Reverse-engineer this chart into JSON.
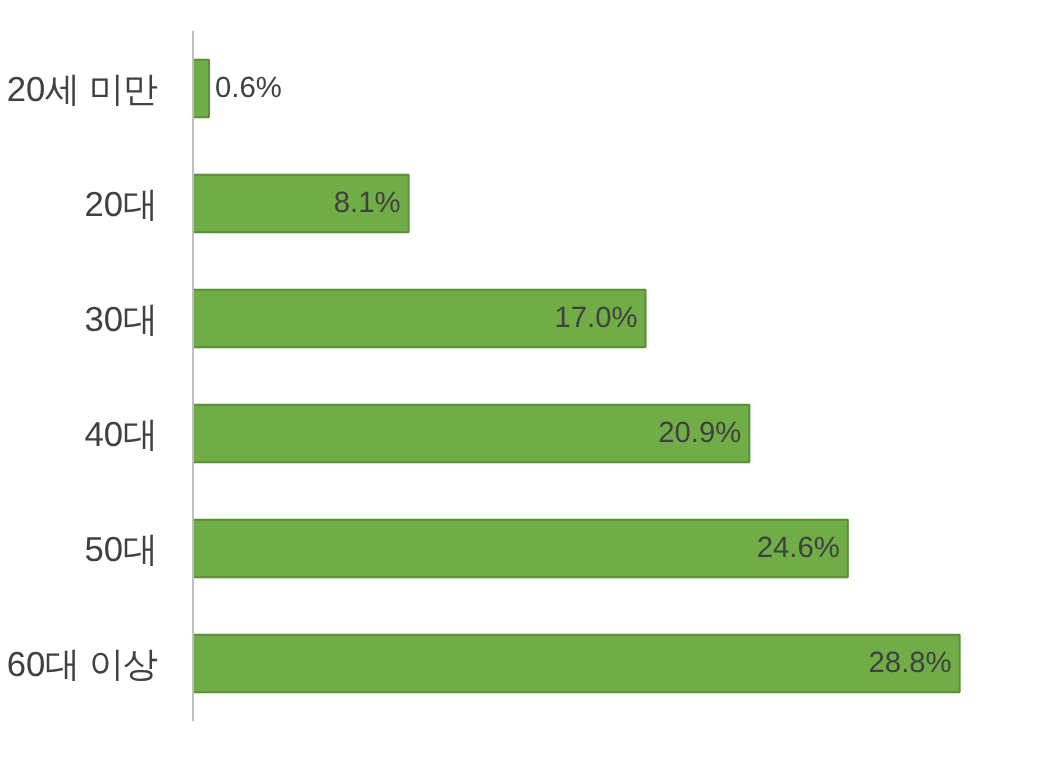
{
  "chart_data": {
    "type": "bar",
    "orientation": "horizontal",
    "categories": [
      "20세 미만",
      "20대",
      "30대",
      "40대",
      "50대",
      "60대 이상"
    ],
    "values": [
      0.6,
      8.1,
      17.0,
      20.9,
      24.6,
      28.8
    ],
    "value_labels": [
      "0.6%",
      "8.1%",
      "17.0%",
      "20.9%",
      "24.6%",
      "28.8%"
    ],
    "color": "#70ad47",
    "tick_labels": "y",
    "grid": false
  }
}
